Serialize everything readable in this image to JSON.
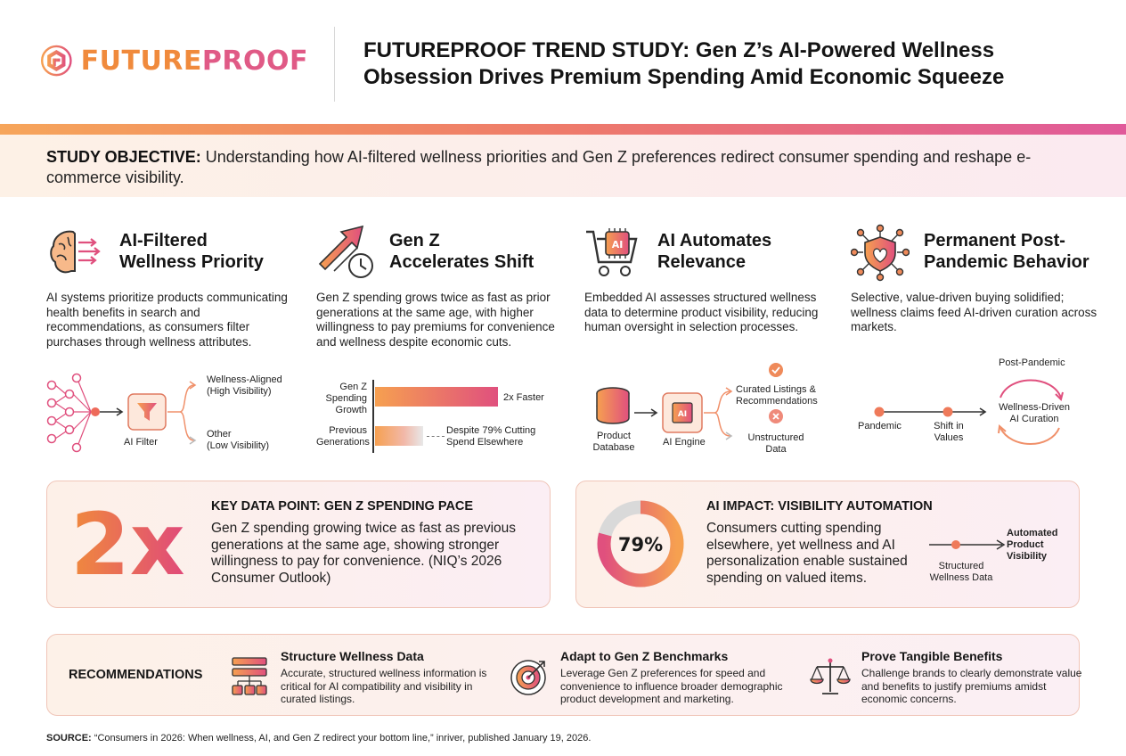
{
  "header": {
    "logo_part1": "FUTURE",
    "logo_part2": "PROOF",
    "title_line1": "FUTUREPROOF TREND STUDY: Gen Z’s AI-Powered Wellness",
    "title_line2": "Obsession Drives Premium Spending Amid Economic Squeeze"
  },
  "objective": {
    "label": "STUDY OBJECTIVE:",
    "text": " Understanding how AI-filtered wellness priorities and Gen Z preferences redirect consumer spending and reshape e-commerce visibility."
  },
  "columns": [
    {
      "title_line1": "AI-Filtered",
      "title_line2": "Wellness Priority",
      "text": "AI systems prioritize products communicating health benefits in search and recommendations, as consumers filter purchases through wellness attributes.",
      "diagram": {
        "filter_label": "AI Filter",
        "out1_line1": "Wellness-Aligned",
        "out1_line2": "(High Visibility)",
        "out2_line1": "Other",
        "out2_line2": "(Low Visibility)"
      }
    },
    {
      "title_line1": "Gen Z",
      "title_line2": "Accelerates Shift",
      "text": "Gen Z spending grows twice as fast as prior generations at the same age, with higher willingness to pay premiums for convenience and wellness despite economic cuts.",
      "chart": {
        "row1_label_1": "Gen Z",
        "row1_label_2": "Spending",
        "row1_label_3": "Growth",
        "row1_value": "2x Faster",
        "row2_label_1": "Previous",
        "row2_label_2": "Generations",
        "row2_note_1": "Despite 79% Cutting",
        "row2_note_2": "Spend Elsewhere"
      }
    },
    {
      "title_line1": "AI Automates",
      "title_line2": "Relevance",
      "text": "Embedded AI assesses structured wellness data to determine product visibility, reducing human oversight in selection processes.",
      "diagram": {
        "db_line1": "Product",
        "db_line2": "Database",
        "engine_label": "AI Engine",
        "chip_text": "AI",
        "out1_line1": "Curated Listings &",
        "out1_line2": "Recommendations",
        "out2_line1": "Unstructured",
        "out2_line2": "Data"
      }
    },
    {
      "title_line1": "Permanent Post-",
      "title_line2": "Pandemic Behavior",
      "text": "Selective, value-driven buying solidified; wellness claims feed AI-driven curation across markets.",
      "diagram": {
        "post_label": "Post-Pandemic",
        "pandemic_label": "Pandemic",
        "shift_line1": "Shift in",
        "shift_line2": "Values",
        "curation_line1": "Wellness-Driven",
        "curation_line2": "AI Curation"
      }
    }
  ],
  "card_left": {
    "big_value": "2x",
    "title": "KEY DATA POINT: GEN Z SPENDING PACE",
    "text": "Gen Z spending growing twice as fast as previous generations at the same age, showing stronger willingness to pay for convenience. (NIQ’s 2026 Consumer Outlook)"
  },
  "card_right": {
    "donut_value": "79%",
    "donut_fraction": 0.79,
    "title": "AI IMPACT: VISIBILITY AUTOMATION",
    "text": "Consumers cutting spending elsewhere, yet wellness and AI personalization enable sustained spending on valued items.",
    "flow_from_1": "Structured",
    "flow_from_2": "Wellness Data",
    "flow_to_1": "Automated",
    "flow_to_2": "Product",
    "flow_to_3": "Visibility"
  },
  "recommendations": {
    "label": "RECOMMENDATIONS",
    "items": [
      {
        "title": "Structure Wellness Data",
        "text": "Accurate, structured wellness information is critical for AI compatibility and visibility in curated listings."
      },
      {
        "title": "Adapt to Gen Z Benchmarks",
        "text": "Leverage Gen Z preferences for speed and convenience to influence broader demographic product development and marketing."
      },
      {
        "title": "Prove Tangible Benefits",
        "text": "Challenge brands to clearly demonstrate value and benefits to justify premiums amidst economic concerns."
      }
    ]
  },
  "source": {
    "label": "SOURCE:",
    "text": " “Consumers in 2026: When wellness, AI, and Gen Z redirect your bottom line,” inriver, published January 19, 2026."
  },
  "colors": {
    "orange": "#f08a3c",
    "pink": "#e05a86",
    "grey": "#d9d9d9",
    "dark": "#333333"
  }
}
